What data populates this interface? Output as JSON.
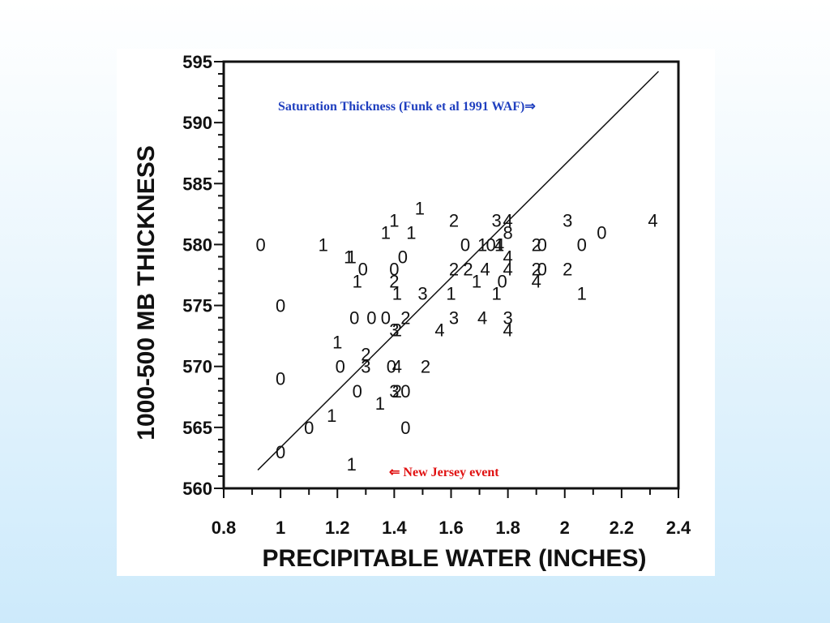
{
  "chart_data": {
    "type": "scatter",
    "xlabel": "PRECIPITABLE WATER (INCHES)",
    "ylabel": "1000-500 MB THICKNESS",
    "xlim": [
      0.8,
      2.4
    ],
    "ylim": [
      560,
      595
    ],
    "x_ticks": [
      "0.8",
      "1",
      "1.2",
      "1.4",
      "1.6",
      "1.8",
      "2",
      "2.2",
      "2.4"
    ],
    "y_ticks": [
      "560",
      "565",
      "570",
      "575",
      "580",
      "585",
      "590",
      "595"
    ],
    "x_tick_values": [
      0.8,
      1.0,
      1.2,
      1.4,
      1.6,
      1.8,
      2.0,
      2.2,
      2.4
    ],
    "y_tick_values": [
      560,
      565,
      570,
      575,
      580,
      585,
      590,
      595
    ],
    "grid": false,
    "points": [
      {
        "x": 0.93,
        "y": 580.0,
        "label": "0"
      },
      {
        "x": 1.0,
        "y": 575.0,
        "label": "0"
      },
      {
        "x": 1.0,
        "y": 569.0,
        "label": "0"
      },
      {
        "x": 1.0,
        "y": 563.0,
        "label": "0"
      },
      {
        "x": 1.1,
        "y": 565.0,
        "label": "0"
      },
      {
        "x": 1.15,
        "y": 580.0,
        "label": "1"
      },
      {
        "x": 1.18,
        "y": 566.0,
        "label": "1"
      },
      {
        "x": 1.2,
        "y": 572.0,
        "label": "1"
      },
      {
        "x": 1.21,
        "y": 570.0,
        "label": "0"
      },
      {
        "x": 1.24,
        "y": 579.0,
        "label": "1"
      },
      {
        "x": 1.25,
        "y": 579.0,
        "label": "1"
      },
      {
        "x": 1.25,
        "y": 562.0,
        "label": "1"
      },
      {
        "x": 1.26,
        "y": 574.0,
        "label": "0"
      },
      {
        "x": 1.27,
        "y": 568.0,
        "label": "0"
      },
      {
        "x": 1.27,
        "y": 577.0,
        "label": "1"
      },
      {
        "x": 1.29,
        "y": 578.0,
        "label": "0"
      },
      {
        "x": 1.3,
        "y": 571.0,
        "label": "2"
      },
      {
        "x": 1.3,
        "y": 570.0,
        "label": "3"
      },
      {
        "x": 1.32,
        "y": 574.0,
        "label": "0"
      },
      {
        "x": 1.35,
        "y": 567.0,
        "label": "1"
      },
      {
        "x": 1.37,
        "y": 574.0,
        "label": "0"
      },
      {
        "x": 1.37,
        "y": 581.0,
        "label": "1"
      },
      {
        "x": 1.39,
        "y": 570.0,
        "label": "0"
      },
      {
        "x": 1.4,
        "y": 582.0,
        "label": "1"
      },
      {
        "x": 1.4,
        "y": 578.0,
        "label": "0"
      },
      {
        "x": 1.4,
        "y": 577.0,
        "label": "2"
      },
      {
        "x": 1.4,
        "y": 573.0,
        "label": "3"
      },
      {
        "x": 1.4,
        "y": 568.0,
        "label": "3"
      },
      {
        "x": 1.41,
        "y": 576.0,
        "label": "1"
      },
      {
        "x": 1.41,
        "y": 570.0,
        "label": "4"
      },
      {
        "x": 1.41,
        "y": 573.0,
        "label": "2"
      },
      {
        "x": 1.41,
        "y": 568.0,
        "label": "2"
      },
      {
        "x": 1.43,
        "y": 579.0,
        "label": "0"
      },
      {
        "x": 1.44,
        "y": 568.0,
        "label": "0"
      },
      {
        "x": 1.44,
        "y": 565.0,
        "label": "0"
      },
      {
        "x": 1.44,
        "y": 574.0,
        "label": "2"
      },
      {
        "x": 1.46,
        "y": 581.0,
        "label": "1"
      },
      {
        "x": 1.49,
        "y": 583.0,
        "label": "1"
      },
      {
        "x": 1.5,
        "y": 576.0,
        "label": "3"
      },
      {
        "x": 1.51,
        "y": 570.0,
        "label": "2"
      },
      {
        "x": 1.56,
        "y": 573.0,
        "label": "4"
      },
      {
        "x": 1.6,
        "y": 576.0,
        "label": "1"
      },
      {
        "x": 1.61,
        "y": 574.0,
        "label": "3"
      },
      {
        "x": 1.61,
        "y": 578.0,
        "label": "2"
      },
      {
        "x": 1.61,
        "y": 582.0,
        "label": "2"
      },
      {
        "x": 1.65,
        "y": 580.0,
        "label": "0"
      },
      {
        "x": 1.66,
        "y": 578.0,
        "label": "2"
      },
      {
        "x": 1.69,
        "y": 577.0,
        "label": "1"
      },
      {
        "x": 1.71,
        "y": 580.0,
        "label": "1"
      },
      {
        "x": 1.71,
        "y": 574.0,
        "label": "4"
      },
      {
        "x": 1.72,
        "y": 578.0,
        "label": "4"
      },
      {
        "x": 1.74,
        "y": 580.0,
        "label": "0"
      },
      {
        "x": 1.76,
        "y": 576.0,
        "label": "1"
      },
      {
        "x": 1.76,
        "y": 582.0,
        "label": "3"
      },
      {
        "x": 1.77,
        "y": 580.0,
        "label": "1"
      },
      {
        "x": 1.77,
        "y": 580.0,
        "label": "4"
      },
      {
        "x": 1.78,
        "y": 577.0,
        "label": "0"
      },
      {
        "x": 1.8,
        "y": 582.0,
        "label": "4"
      },
      {
        "x": 1.8,
        "y": 581.0,
        "label": "8"
      },
      {
        "x": 1.8,
        "y": 579.0,
        "label": "4"
      },
      {
        "x": 1.8,
        "y": 578.0,
        "label": "4"
      },
      {
        "x": 1.8,
        "y": 574.0,
        "label": "3"
      },
      {
        "x": 1.8,
        "y": 573.0,
        "label": "4"
      },
      {
        "x": 1.9,
        "y": 580.0,
        "label": "2"
      },
      {
        "x": 1.9,
        "y": 578.0,
        "label": "2"
      },
      {
        "x": 1.9,
        "y": 577.0,
        "label": "4"
      },
      {
        "x": 1.92,
        "y": 580.0,
        "label": "0"
      },
      {
        "x": 1.92,
        "y": 578.0,
        "label": "0"
      },
      {
        "x": 2.01,
        "y": 578.0,
        "label": "2"
      },
      {
        "x": 2.01,
        "y": 582.0,
        "label": "3"
      },
      {
        "x": 2.06,
        "y": 576.0,
        "label": "1"
      },
      {
        "x": 2.06,
        "y": 580.0,
        "label": "0"
      },
      {
        "x": 2.13,
        "y": 581.0,
        "label": "0"
      },
      {
        "x": 2.31,
        "y": 582.0,
        "label": "4"
      }
    ],
    "line": {
      "x": [
        0.92,
        2.33
      ],
      "y": [
        561.5,
        594.2
      ]
    },
    "annotations": [
      {
        "text": "Saturation Thickness (Funk et al 1991 WAF)⇒",
        "color": "#1f3fbf"
      },
      {
        "text": "⇐ New Jersey event",
        "color": "#e01010"
      }
    ]
  }
}
